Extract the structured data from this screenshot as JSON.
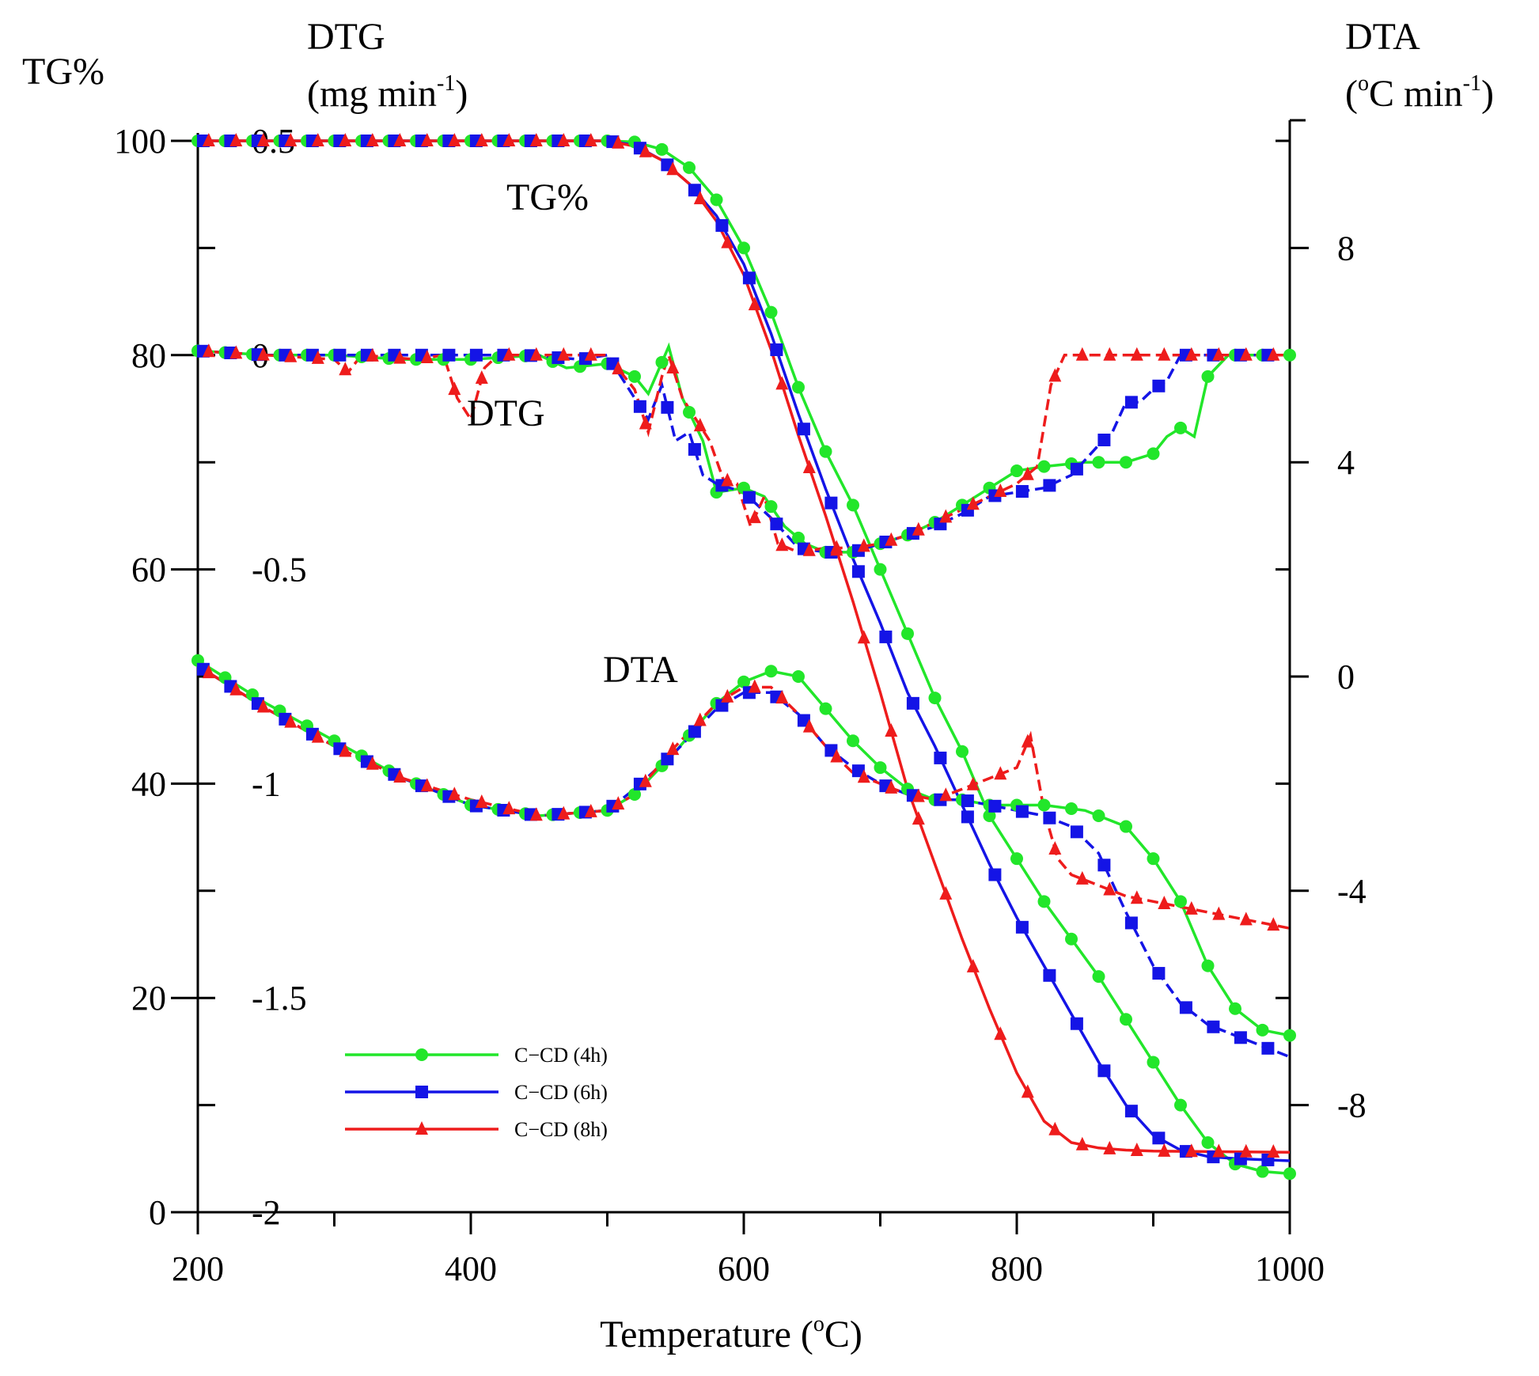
{
  "colors": {
    "C-CD (4h)": "#22e62a",
    "C-CD (6h)": "#1414e6",
    "C-CD (8h)": "#ee1c1c"
  },
  "chart_data": {
    "type": "line",
    "xlabel": {
      "main": "Temperature (",
      "sup": "o",
      "end": "C)"
    },
    "xlim": [
      200,
      1000
    ],
    "xticks": [
      "200",
      "400",
      "600",
      "800",
      "1000"
    ],
    "axes": {
      "tg": {
        "title": "TG%",
        "ylim": [
          0,
          100
        ],
        "ticks": [
          "0",
          "20",
          "40",
          "60",
          "80",
          "100"
        ]
      },
      "dtg": {
        "title_line1": "DTG",
        "title_line2_main": "(mg min",
        "title_line2_sup": "-1",
        "title_line2_end": ")",
        "ylim": [
          -2,
          0.5
        ],
        "ticks": [
          "-2",
          "-1.5",
          "-1",
          "-0.5",
          "0",
          "0.5"
        ]
      },
      "dta": {
        "title_line1": "DTA",
        "title_line2_pre": "(",
        "title_line2_sup1": "o",
        "title_line2_main": "C min",
        "title_line2_sup2": "-1",
        "title_line2_end": ")",
        "ylim": [
          -10,
          10
        ],
        "ticks": [
          "-8",
          "-4",
          "0",
          "4",
          "8"
        ]
      }
    },
    "curve_labels": {
      "tg": "TG%",
      "dtg": "DTG",
      "dta": "DTA"
    },
    "legend": {
      "placement": "lower-left",
      "entries": [
        "C−CD (4h)",
        "C−CD (6h)",
        "C−CD (8h)"
      ]
    },
    "series": [
      {
        "name": "C-CD (4h)",
        "marker": "circle",
        "tg": [
          [
            200,
            100
          ],
          [
            500,
            100
          ],
          [
            520,
            99.9
          ],
          [
            540,
            99.2
          ],
          [
            560,
            97.5
          ],
          [
            580,
            94.5
          ],
          [
            600,
            90
          ],
          [
            620,
            84
          ],
          [
            640,
            77
          ],
          [
            660,
            71
          ],
          [
            680,
            66
          ],
          [
            700,
            60
          ],
          [
            720,
            54
          ],
          [
            740,
            48
          ],
          [
            760,
            43
          ],
          [
            780,
            37
          ],
          [
            800,
            33
          ],
          [
            820,
            29
          ],
          [
            840,
            25.5
          ],
          [
            860,
            22
          ],
          [
            880,
            18
          ],
          [
            900,
            14
          ],
          [
            920,
            10
          ],
          [
            940,
            6.5
          ],
          [
            960,
            4.5
          ],
          [
            980,
            3.8
          ],
          [
            1000,
            3.6
          ]
        ],
        "dtg": [
          [
            200,
            0.01
          ],
          [
            250,
            0.0
          ],
          [
            300,
            0.0
          ],
          [
            350,
            -0.01
          ],
          [
            400,
            -0.01
          ],
          [
            450,
            0.0
          ],
          [
            470,
            -0.03
          ],
          [
            500,
            -0.02
          ],
          [
            520,
            -0.05
          ],
          [
            530,
            -0.09
          ],
          [
            545,
            0.02
          ],
          [
            555,
            -0.1
          ],
          [
            570,
            -0.2
          ],
          [
            580,
            -0.32
          ],
          [
            600,
            -0.31
          ],
          [
            615,
            -0.33
          ],
          [
            630,
            -0.4
          ],
          [
            645,
            -0.44
          ],
          [
            660,
            -0.46
          ],
          [
            680,
            -0.46
          ],
          [
            700,
            -0.44
          ],
          [
            720,
            -0.42
          ],
          [
            740,
            -0.39
          ],
          [
            760,
            -0.35
          ],
          [
            780,
            -0.31
          ],
          [
            800,
            -0.27
          ],
          [
            820,
            -0.26
          ],
          [
            850,
            -0.25
          ],
          [
            880,
            -0.25
          ],
          [
            900,
            -0.23
          ],
          [
            910,
            -0.19
          ],
          [
            920,
            -0.17
          ],
          [
            930,
            -0.19
          ],
          [
            940,
            -0.05
          ],
          [
            955,
            0.0
          ],
          [
            1000,
            0.0
          ]
        ],
        "dta": [
          [
            200,
            0.3
          ],
          [
            250,
            -0.5
          ],
          [
            300,
            -1.2
          ],
          [
            350,
            -1.9
          ],
          [
            400,
            -2.4
          ],
          [
            450,
            -2.6
          ],
          [
            500,
            -2.5
          ],
          [
            520,
            -2.2
          ],
          [
            550,
            -1.4
          ],
          [
            580,
            -0.5
          ],
          [
            600,
            -0.1
          ],
          [
            620,
            0.1
          ],
          [
            640,
            0.0
          ],
          [
            660,
            -0.6
          ],
          [
            680,
            -1.2
          ],
          [
            700,
            -1.7
          ],
          [
            720,
            -2.1
          ],
          [
            740,
            -2.3
          ],
          [
            760,
            -2.3
          ],
          [
            780,
            -2.4
          ],
          [
            800,
            -2.4
          ],
          [
            820,
            -2.4
          ],
          [
            850,
            -2.5
          ],
          [
            880,
            -2.8
          ],
          [
            900,
            -3.4
          ],
          [
            920,
            -4.2
          ],
          [
            940,
            -5.4
          ],
          [
            960,
            -6.2
          ],
          [
            980,
            -6.6
          ],
          [
            1000,
            -6.7
          ]
        ]
      },
      {
        "name": "C-CD (6h)",
        "marker": "square",
        "tg": [
          [
            200,
            100
          ],
          [
            500,
            100
          ],
          [
            520,
            99.6
          ],
          [
            540,
            98.2
          ],
          [
            560,
            96
          ],
          [
            580,
            93
          ],
          [
            600,
            88.5
          ],
          [
            620,
            82
          ],
          [
            640,
            74.5
          ],
          [
            660,
            67.5
          ],
          [
            680,
            61
          ],
          [
            700,
            55
          ],
          [
            720,
            48.5
          ],
          [
            740,
            43.5
          ],
          [
            760,
            38
          ],
          [
            780,
            32.5
          ],
          [
            800,
            27.5
          ],
          [
            820,
            23
          ],
          [
            840,
            18.5
          ],
          [
            860,
            14
          ],
          [
            880,
            10
          ],
          [
            900,
            7.2
          ],
          [
            920,
            5.8
          ],
          [
            940,
            5.2
          ],
          [
            960,
            5.0
          ],
          [
            1000,
            4.8
          ]
        ],
        "dtg": [
          [
            200,
            0.01
          ],
          [
            250,
            0.0
          ],
          [
            300,
            0.0
          ],
          [
            350,
            0.0
          ],
          [
            400,
            0.0
          ],
          [
            440,
            0.0
          ],
          [
            480,
            -0.01
          ],
          [
            500,
            0.0
          ],
          [
            520,
            -0.1
          ],
          [
            530,
            -0.15
          ],
          [
            540,
            -0.07
          ],
          [
            550,
            -0.2
          ],
          [
            560,
            -0.18
          ],
          [
            570,
            -0.28
          ],
          [
            580,
            -0.3
          ],
          [
            600,
            -0.32
          ],
          [
            620,
            -0.38
          ],
          [
            640,
            -0.45
          ],
          [
            660,
            -0.46
          ],
          [
            680,
            -0.46
          ],
          [
            700,
            -0.44
          ],
          [
            720,
            -0.42
          ],
          [
            740,
            -0.4
          ],
          [
            760,
            -0.37
          ],
          [
            780,
            -0.33
          ],
          [
            800,
            -0.32
          ],
          [
            820,
            -0.31
          ],
          [
            840,
            -0.28
          ],
          [
            860,
            -0.21
          ],
          [
            870,
            -0.18
          ],
          [
            880,
            -0.11
          ],
          [
            890,
            -0.11
          ],
          [
            900,
            -0.08
          ],
          [
            910,
            -0.06
          ],
          [
            920,
            0.0
          ],
          [
            1000,
            0.0
          ]
        ],
        "dta": [
          [
            200,
            0.2
          ],
          [
            250,
            -0.6
          ],
          [
            300,
            -1.3
          ],
          [
            350,
            -1.9
          ],
          [
            400,
            -2.4
          ],
          [
            450,
            -2.6
          ],
          [
            500,
            -2.5
          ],
          [
            520,
            -2.1
          ],
          [
            550,
            -1.4
          ],
          [
            580,
            -0.6
          ],
          [
            600,
            -0.3
          ],
          [
            620,
            -0.3
          ],
          [
            640,
            -0.7
          ],
          [
            660,
            -1.3
          ],
          [
            680,
            -1.7
          ],
          [
            700,
            -2.0
          ],
          [
            720,
            -2.2
          ],
          [
            740,
            -2.3
          ],
          [
            760,
            -2.3
          ],
          [
            780,
            -2.4
          ],
          [
            800,
            -2.5
          ],
          [
            820,
            -2.6
          ],
          [
            840,
            -2.8
          ],
          [
            860,
            -3.3
          ],
          [
            880,
            -4.4
          ],
          [
            900,
            -5.4
          ],
          [
            920,
            -6.1
          ],
          [
            940,
            -6.5
          ],
          [
            960,
            -6.7
          ],
          [
            980,
            -6.9
          ],
          [
            1000,
            -7.1
          ]
        ]
      },
      {
        "name": "C-CD (8h)",
        "marker": "triangle",
        "tg": [
          [
            200,
            100
          ],
          [
            500,
            100
          ],
          [
            520,
            99.5
          ],
          [
            540,
            98.2
          ],
          [
            560,
            96
          ],
          [
            580,
            92.5
          ],
          [
            600,
            87.5
          ],
          [
            620,
            80.5
          ],
          [
            640,
            72.5
          ],
          [
            660,
            65
          ],
          [
            680,
            57
          ],
          [
            700,
            48.5
          ],
          [
            720,
            39.5
          ],
          [
            740,
            32.5
          ],
          [
            760,
            25.5
          ],
          [
            780,
            19
          ],
          [
            800,
            13
          ],
          [
            820,
            8.5
          ],
          [
            840,
            6.5
          ],
          [
            860,
            6.0
          ],
          [
            880,
            5.8
          ],
          [
            900,
            5.7
          ],
          [
            1000,
            5.6
          ]
        ],
        "dtg": [
          [
            200,
            0.01
          ],
          [
            250,
            0.0
          ],
          [
            300,
            -0.01
          ],
          [
            310,
            -0.04
          ],
          [
            320,
            0.0
          ],
          [
            360,
            -0.01
          ],
          [
            380,
            0.0
          ],
          [
            390,
            -0.1
          ],
          [
            400,
            -0.15
          ],
          [
            410,
            -0.03
          ],
          [
            420,
            0.0
          ],
          [
            500,
            0.0
          ],
          [
            520,
            -0.08
          ],
          [
            530,
            -0.18
          ],
          [
            540,
            -0.05
          ],
          [
            545,
            0.0
          ],
          [
            555,
            -0.1
          ],
          [
            565,
            -0.15
          ],
          [
            575,
            -0.2
          ],
          [
            585,
            -0.29
          ],
          [
            595,
            -0.3
          ],
          [
            605,
            -0.4
          ],
          [
            615,
            -0.33
          ],
          [
            625,
            -0.44
          ],
          [
            640,
            -0.46
          ],
          [
            660,
            -0.45
          ],
          [
            680,
            -0.45
          ],
          [
            700,
            -0.44
          ],
          [
            720,
            -0.42
          ],
          [
            740,
            -0.39
          ],
          [
            760,
            -0.36
          ],
          [
            780,
            -0.33
          ],
          [
            800,
            -0.3
          ],
          [
            815,
            -0.26
          ],
          [
            825,
            -0.07
          ],
          [
            835,
            0.0
          ],
          [
            1000,
            0.0
          ]
        ],
        "dta": [
          [
            200,
            0.2
          ],
          [
            250,
            -0.6
          ],
          [
            300,
            -1.3
          ],
          [
            350,
            -1.9
          ],
          [
            400,
            -2.3
          ],
          [
            450,
            -2.6
          ],
          [
            500,
            -2.5
          ],
          [
            520,
            -2.2
          ],
          [
            550,
            -1.3
          ],
          [
            580,
            -0.5
          ],
          [
            600,
            -0.2
          ],
          [
            620,
            -0.2
          ],
          [
            640,
            -0.7
          ],
          [
            660,
            -1.3
          ],
          [
            680,
            -1.8
          ],
          [
            700,
            -2.0
          ],
          [
            720,
            -2.2
          ],
          [
            740,
            -2.3
          ],
          [
            760,
            -2.1
          ],
          [
            780,
            -1.9
          ],
          [
            800,
            -1.7
          ],
          [
            810,
            -1.1
          ],
          [
            820,
            -2.5
          ],
          [
            830,
            -3.4
          ],
          [
            840,
            -3.7
          ],
          [
            860,
            -3.9
          ],
          [
            880,
            -4.1
          ],
          [
            900,
            -4.2
          ],
          [
            920,
            -4.3
          ],
          [
            940,
            -4.4
          ],
          [
            960,
            -4.5
          ],
          [
            980,
            -4.6
          ],
          [
            1000,
            -4.7
          ]
        ]
      }
    ]
  }
}
